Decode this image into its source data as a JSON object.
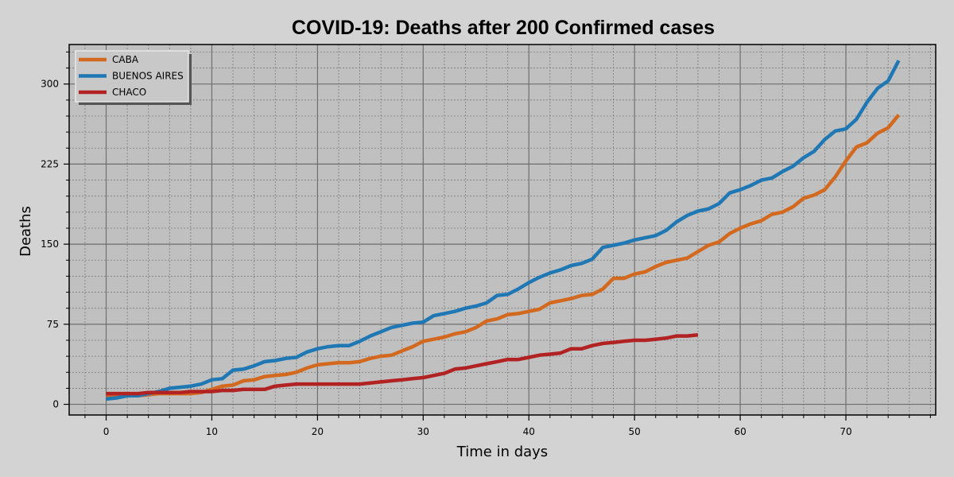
{
  "chart_data": {
    "type": "line",
    "title": "COVID-19: Deaths after 200 Confirmed cases",
    "xlabel": "Time in days",
    "ylabel": "Deaths",
    "xlim": [
      -3.5,
      78.5
    ],
    "ylim": [
      -10,
      337
    ],
    "xticks": [
      0,
      10,
      20,
      30,
      40,
      50,
      60,
      70
    ],
    "yticks": [
      0,
      75,
      150,
      225,
      300
    ],
    "grid": true,
    "legend_position": "top-left",
    "colors": {
      "background": "#d3d3d3",
      "plot_bg": "#c0c0c0"
    },
    "series": [
      {
        "name": "CABA",
        "color": "#d2691e",
        "x": [
          0,
          1,
          2,
          3,
          4,
          5,
          6,
          7,
          8,
          9,
          10,
          11,
          12,
          13,
          14,
          15,
          16,
          17,
          18,
          19,
          20,
          21,
          22,
          23,
          24,
          25,
          26,
          27,
          28,
          29,
          30,
          31,
          32,
          33,
          34,
          35,
          36,
          37,
          38,
          39,
          40,
          41,
          42,
          43,
          44,
          45,
          46,
          47,
          48,
          49,
          50,
          51,
          52,
          53,
          54,
          55,
          56,
          57,
          58,
          59,
          60,
          61,
          62,
          63,
          64,
          65,
          66,
          67,
          68,
          69,
          70,
          71,
          72,
          73,
          74,
          75
        ],
        "values": [
          8,
          8,
          8,
          8,
          9,
          10,
          10,
          10,
          10,
          11,
          14,
          17,
          18,
          22,
          23,
          26,
          27,
          28,
          30,
          34,
          37,
          38,
          39,
          39,
          40,
          43,
          45,
          46,
          50,
          54,
          59,
          61,
          63,
          66,
          68,
          72,
          78,
          80,
          84,
          85,
          87,
          89,
          95,
          97,
          99,
          102,
          103,
          108,
          118,
          118,
          122,
          124,
          129,
          133,
          135,
          137,
          143,
          149,
          152,
          160,
          165,
          169,
          172,
          178,
          180,
          185,
          193,
          196,
          201,
          213,
          228,
          241,
          245,
          254,
          259,
          271
        ]
      },
      {
        "name": "BUENOS AIRES",
        "color": "#1f77b4",
        "x": [
          0,
          1,
          2,
          3,
          4,
          5,
          6,
          7,
          8,
          9,
          10,
          11,
          12,
          13,
          14,
          15,
          16,
          17,
          18,
          19,
          20,
          21,
          22,
          23,
          24,
          25,
          26,
          27,
          28,
          29,
          30,
          31,
          32,
          33,
          34,
          35,
          36,
          37,
          38,
          39,
          40,
          41,
          42,
          43,
          44,
          45,
          46,
          47,
          48,
          49,
          50,
          51,
          52,
          53,
          54,
          55,
          56,
          57,
          58,
          59,
          60,
          61,
          62,
          63,
          64,
          65,
          66,
          67,
          68,
          69,
          70,
          71,
          72,
          73,
          74,
          75
        ],
        "values": [
          5,
          6,
          8,
          8,
          10,
          12,
          15,
          16,
          17,
          19,
          23,
          24,
          32,
          33,
          36,
          40,
          41,
          43,
          44,
          49,
          52,
          54,
          55,
          55,
          59,
          64,
          68,
          72,
          74,
          76,
          77,
          83,
          85,
          87,
          90,
          92,
          95,
          102,
          103,
          108,
          114,
          119,
          123,
          126,
          130,
          132,
          136,
          147,
          149,
          151,
          154,
          156,
          158,
          163,
          171,
          177,
          181,
          183,
          188,
          198,
          201,
          205,
          210,
          212,
          218,
          223,
          231,
          237,
          248,
          256,
          258,
          267,
          283,
          296,
          303,
          322
        ]
      },
      {
        "name": "CHACO",
        "color": "#b22222",
        "x": [
          0,
          1,
          2,
          3,
          4,
          5,
          6,
          7,
          8,
          9,
          10,
          11,
          12,
          13,
          14,
          15,
          16,
          17,
          18,
          19,
          20,
          21,
          22,
          23,
          24,
          25,
          26,
          27,
          28,
          29,
          30,
          31,
          32,
          33,
          34,
          35,
          36,
          37,
          38,
          39,
          40,
          41,
          42,
          43,
          44,
          45,
          46,
          47,
          48,
          49,
          50,
          51,
          52,
          53,
          54,
          55,
          56
        ],
        "values": [
          10,
          10,
          10,
          10,
          11,
          11,
          11,
          11,
          12,
          12,
          12,
          13,
          13,
          14,
          14,
          14,
          17,
          18,
          19,
          19,
          19,
          19,
          19,
          19,
          19,
          20,
          21,
          22,
          23,
          24,
          25,
          27,
          29,
          33,
          34,
          36,
          38,
          40,
          42,
          42,
          44,
          46,
          47,
          48,
          52,
          52,
          55,
          57,
          58,
          59,
          60,
          60,
          61,
          62,
          64,
          64,
          65
        ]
      }
    ]
  }
}
